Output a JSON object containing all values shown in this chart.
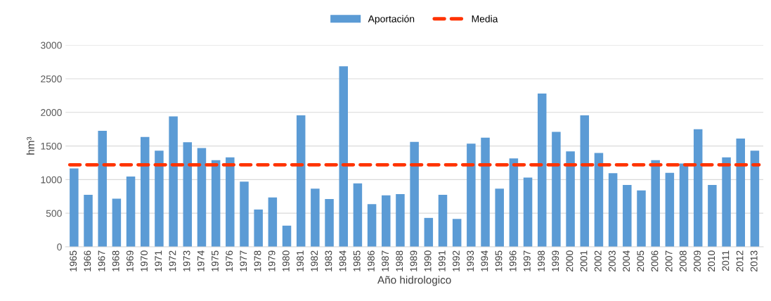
{
  "chart_data": {
    "type": "bar",
    "xlabel": "Año hidrologico",
    "ylabel": "hm³",
    "categories": [
      "1965",
      "1966",
      "1967",
      "1968",
      "1969",
      "1970",
      "1971",
      "1972",
      "1973",
      "1974",
      "1975",
      "1976",
      "1977",
      "1978",
      "1979",
      "1980",
      "1981",
      "1982",
      "1983",
      "1984",
      "1985",
      "1986",
      "1987",
      "1988",
      "1989",
      "1990",
      "1991",
      "1992",
      "1993",
      "1994",
      "1995",
      "1996",
      "1997",
      "1998",
      "1999",
      "2000",
      "2001",
      "2002",
      "2003",
      "2004",
      "2005",
      "2006",
      "2007",
      "2008",
      "2009",
      "2010",
      "2011",
      "2012",
      "2013"
    ],
    "series": [
      {
        "name": "Aportación",
        "color": "#5b9bd5",
        "values": [
          1165,
          775,
          1725,
          715,
          1045,
          1635,
          1430,
          1940,
          1555,
          1470,
          1290,
          1330,
          970,
          555,
          735,
          315,
          1955,
          865,
          710,
          2685,
          945,
          635,
          765,
          785,
          1560,
          430,
          775,
          415,
          1535,
          1625,
          865,
          1315,
          1030,
          2280,
          1710,
          1420,
          1955,
          1395,
          1095,
          920,
          840,
          1290,
          1100,
          1240,
          1750,
          920,
          1330,
          1610,
          1430
        ]
      }
    ],
    "ref_lines": [
      {
        "axis": "y",
        "value": 1220,
        "label": "Media",
        "color": "#ff3300",
        "line_style": "dashed"
      }
    ],
    "ylim": [
      0,
      3000
    ],
    "yticks": [
      0,
      500,
      1000,
      1500,
      2000,
      2500,
      3000
    ],
    "grid": "y",
    "legend": "top"
  }
}
